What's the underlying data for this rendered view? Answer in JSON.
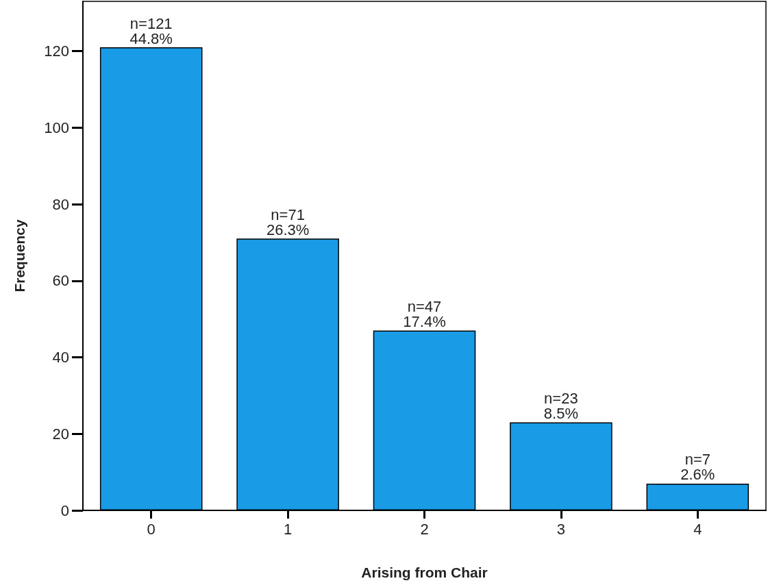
{
  "chart_data": {
    "type": "bar",
    "xlabel": "Arising from Chair",
    "ylabel": "Frequency",
    "categories": [
      "0",
      "1",
      "2",
      "3",
      "4"
    ],
    "values": [
      121,
      71,
      47,
      23,
      7
    ],
    "value_labels": [
      "n=121\n44.8%",
      "n=71\n26.3%",
      "n=47\n17.4%",
      "n=23\n8.5%",
      "n=7\n2.6%"
    ],
    "color": "#1a9be6",
    "ylim": [
      0,
      133
    ],
    "yticks": [
      0,
      20,
      40,
      60,
      80,
      100,
      120
    ],
    "grid": false
  }
}
